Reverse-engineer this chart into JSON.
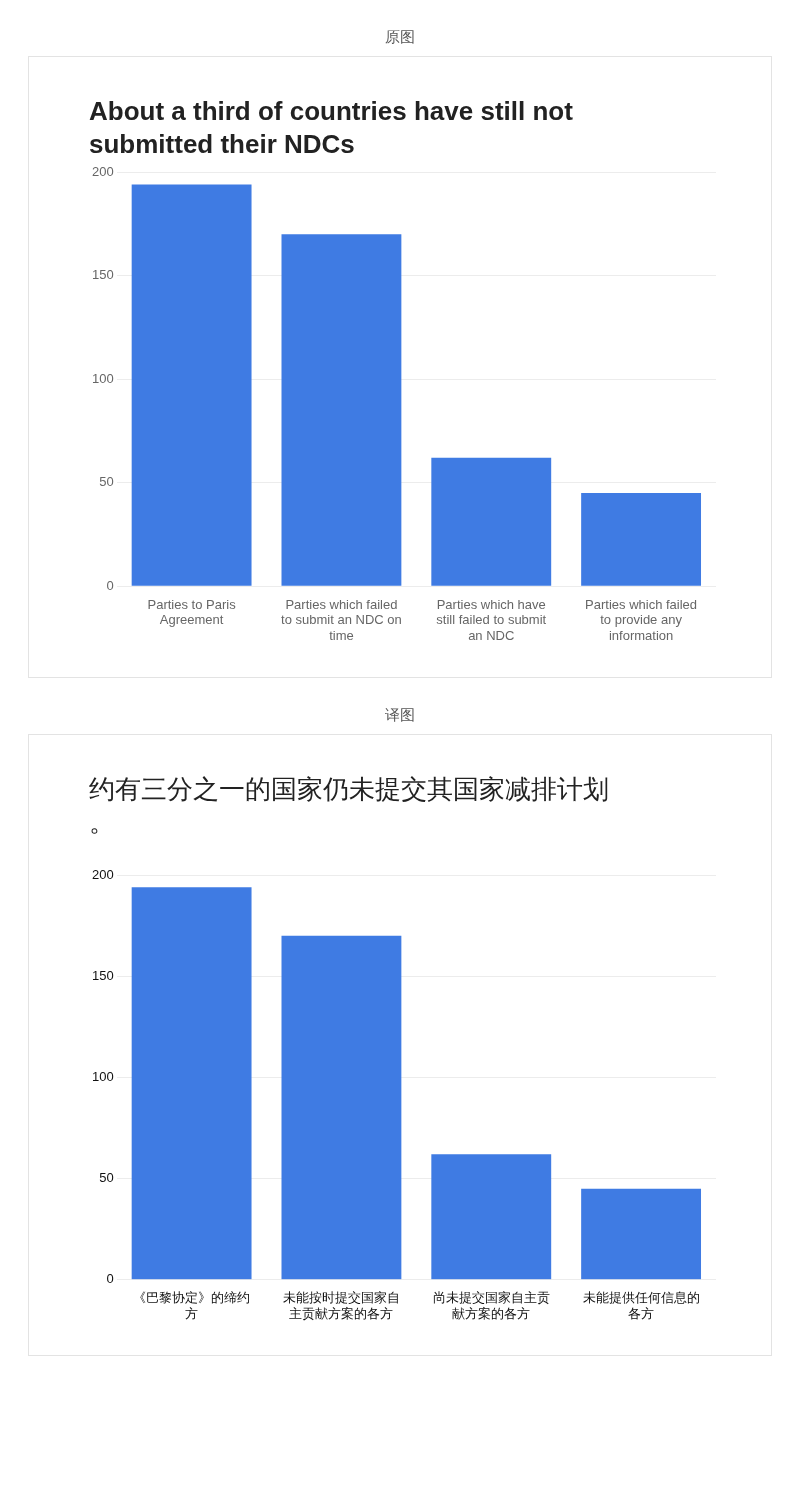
{
  "chart_data": [
    {
      "type": "bar",
      "title": "About a third of countries have still not submitted their NDCs",
      "annotations": [
        "原图"
      ],
      "categories": [
        "Parties to Paris Agreement",
        "Parties which failed to submit an NDC on time",
        "Parties which have still failed to submit an NDC",
        "Parties which failed to provide any information"
      ],
      "values": [
        194,
        170,
        62,
        45
      ],
      "color": "#3f7be3",
      "ylim": [
        0,
        200
      ],
      "yticks": [
        0,
        50,
        100,
        150,
        200
      ],
      "grid": "y",
      "legend": false
    },
    {
      "type": "bar",
      "title": "约有三分之一的国家仍未提交其国家减排计划。",
      "annotations": [
        "译图"
      ],
      "categories": [
        "《巴黎协定》的缔约方",
        "未能按时提交国家自主贡献方案的各方",
        "尚未提交国家自主贡献方案的各方",
        "未能提供任何信息的各方"
      ],
      "values": [
        194,
        170,
        62,
        45
      ],
      "color": "#3f7be3",
      "ylim": [
        0,
        200
      ],
      "yticks": [
        0,
        50,
        100,
        150,
        200
      ],
      "grid": "y",
      "legend": false
    }
  ]
}
